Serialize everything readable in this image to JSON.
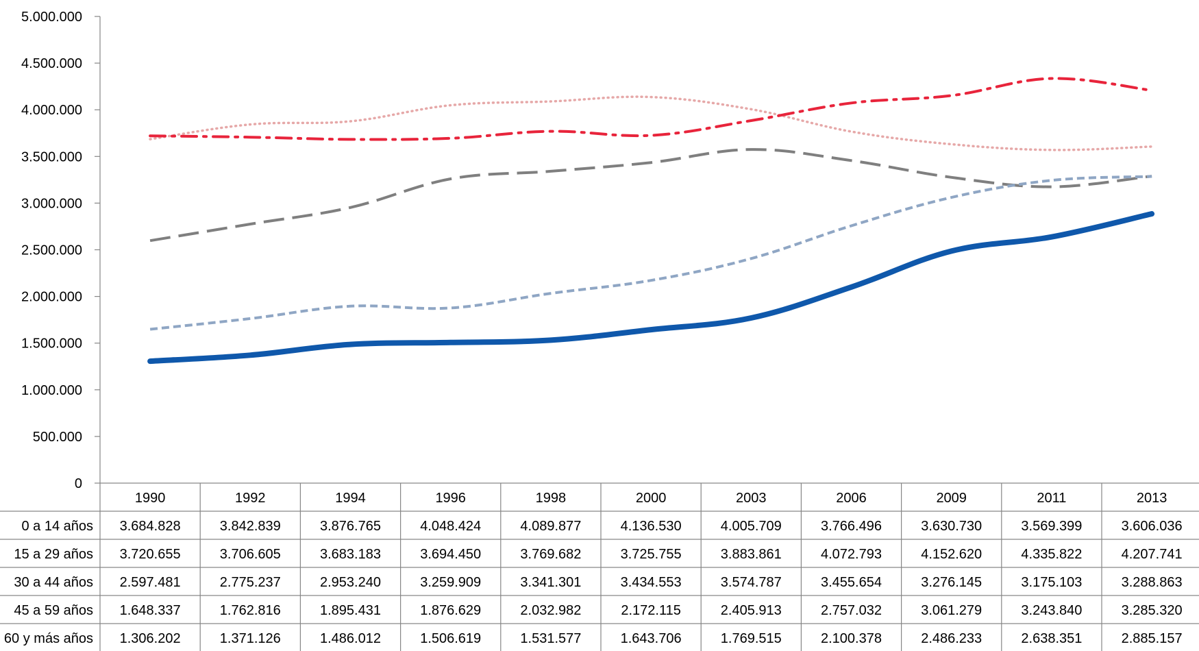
{
  "chart_data": {
    "type": "line",
    "categories": [
      "1990",
      "1992",
      "1994",
      "1996",
      "1998",
      "2000",
      "2003",
      "2006",
      "2009",
      "2011",
      "2013"
    ],
    "ylim": [
      0,
      5000000
    ],
    "yticks": [
      "0",
      "500.000",
      "1.000.000",
      "1.500.000",
      "2.000.000",
      "2.500.000",
      "3.000.000",
      "3.500.000",
      "4.000.000",
      "4.500.000",
      "5.000.000"
    ],
    "grid": false,
    "legend": "data-table-below",
    "series": [
      {
        "name": "0 a 14 años",
        "style": "dotted",
        "color": "#e6a8a8",
        "values": [
          3684828,
          3842839,
          3876765,
          4048424,
          4089877,
          4136530,
          4005709,
          3766496,
          3630730,
          3569399,
          3606036
        ],
        "labels": [
          "3.684.828",
          "3.842.839",
          "3.876.765",
          "4.048.424",
          "4.089.877",
          "4.136.530",
          "4.005.709",
          "3.766.496",
          "3.630.730",
          "3.569.399",
          "3.606.036"
        ]
      },
      {
        "name": "15 a 29 años",
        "style": "dash-dot",
        "color": "#e8243b",
        "values": [
          3720655,
          3706605,
          3683183,
          3694450,
          3769682,
          3725755,
          3883861,
          4072793,
          4152620,
          4335822,
          4207741
        ],
        "labels": [
          "3.720.655",
          "3.706.605",
          "3.683.183",
          "3.694.450",
          "3.769.682",
          "3.725.755",
          "3.883.861",
          "4.072.793",
          "4.152.620",
          "4.335.822",
          "4.207.741"
        ]
      },
      {
        "name": "30 a 44 años",
        "style": "long-dash",
        "color": "#7f7f7f",
        "values": [
          2597481,
          2775237,
          2953240,
          3259909,
          3341301,
          3434553,
          3574787,
          3455654,
          3276145,
          3175103,
          3288863
        ],
        "labels": [
          "2.597.481",
          "2.775.237",
          "2.953.240",
          "3.259.909",
          "3.341.301",
          "3.434.553",
          "3.574.787",
          "3.455.654",
          "3.276.145",
          "3.175.103",
          "3.288.863"
        ]
      },
      {
        "name": "45 a 59 años",
        "style": "short-dash",
        "color": "#8fa6c4",
        "values": [
          1648337,
          1762816,
          1895431,
          1876629,
          2032982,
          2172115,
          2405913,
          2757032,
          3061279,
          3243840,
          3285320
        ],
        "labels": [
          "1.648.337",
          "1.762.816",
          "1.895.431",
          "1.876.629",
          "2.032.982",
          "2.172.115",
          "2.405.913",
          "2.757.032",
          "3.061.279",
          "3.243.840",
          "3.285.320"
        ]
      },
      {
        "name": "60 y más años",
        "style": "solid",
        "color": "#0f58ab",
        "values": [
          1306202,
          1371126,
          1486012,
          1506619,
          1531577,
          1643706,
          1769515,
          2100378,
          2486233,
          2638351,
          2885157
        ],
        "labels": [
          "1.306.202",
          "1.371.126",
          "1.486.012",
          "1.506.619",
          "1.531.577",
          "1.643.706",
          "1.769.515",
          "2.100.378",
          "2.486.233",
          "2.638.351",
          "2.885.157"
        ]
      }
    ]
  }
}
